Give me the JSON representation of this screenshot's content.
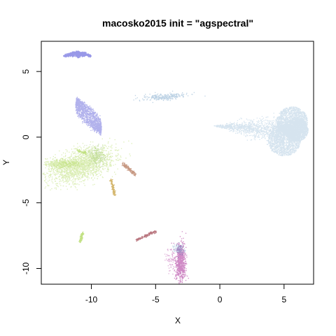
{
  "chart_data": {
    "type": "scatter",
    "title": "macosko2015 init = \"agspectral\"",
    "xlabel": "X",
    "ylabel": "Y",
    "xlim": [
      -13.9,
      7.3
    ],
    "ylim": [
      -11.2,
      7.3
    ],
    "xticks": [
      -10,
      -5,
      0,
      5
    ],
    "yticks": [
      -10,
      -5,
      0,
      5
    ],
    "grid": false,
    "legend": "none",
    "clusters": [
      {
        "shape": "heart",
        "color": "#4682b4",
        "alpha": 0.22,
        "n": 5500,
        "lobes": [
          [
            5.6,
            1.2,
            1.15
          ],
          [
            5.0,
            -0.2,
            1.2
          ],
          [
            5.9,
            0.6,
            0.9
          ]
        ],
        "tip": [
          -0.5,
          0.9
        ]
      },
      {
        "shape": "blob",
        "color": "#4682b4",
        "alpha": 0.35,
        "n": 260,
        "center": [
          -4.4,
          3.1
        ],
        "spread": [
          0.85,
          0.12
        ],
        "rotation": 0.08
      },
      {
        "shape": "arc",
        "color": "#1a1acd",
        "alpha": 0.45,
        "n": 700,
        "center": [
          -11.1,
          6.2
        ],
        "width": 2.0,
        "height": 0.35
      },
      {
        "shape": "leaf",
        "color": "#2020c8",
        "alpha": 0.35,
        "n": 1300,
        "start": [
          -11.2,
          2.9
        ],
        "end": [
          -9.3,
          0.4
        ],
        "width": 0.75
      },
      {
        "shape": "blob",
        "color": "#9acd32",
        "alpha": 0.35,
        "n": 1700,
        "center": [
          -10.8,
          -2.1
        ],
        "spread": [
          1.3,
          0.55
        ],
        "rotation": 0.35
      },
      {
        "shape": "blob",
        "color": "#9acd32",
        "alpha": 0.35,
        "n": 500,
        "center": [
          -12.4,
          -2.0
        ],
        "spread": [
          0.6,
          0.15
        ],
        "rotation": 0.0
      },
      {
        "shape": "blob",
        "color": "#8fbc5a",
        "alpha": 0.35,
        "n": 250,
        "center": [
          -9.6,
          -1.4
        ],
        "spread": [
          0.3,
          0.4
        ],
        "rotation": 0.6
      },
      {
        "shape": "line",
        "color": "#9acd32",
        "alpha": 0.5,
        "n": 60,
        "start": [
          -11.1,
          -1.0
        ],
        "end": [
          -10.4,
          -1.2
        ],
        "width": 0.05
      },
      {
        "shape": "line",
        "color": "#9acd32",
        "alpha": 0.6,
        "n": 90,
        "start": [
          -10.7,
          -7.3
        ],
        "end": [
          -10.9,
          -7.9
        ],
        "width": 0.05
      },
      {
        "shape": "line",
        "color": "#b8860b",
        "alpha": 0.6,
        "n": 120,
        "start": [
          -8.5,
          -3.2
        ],
        "end": [
          -8.2,
          -4.4
        ],
        "width": 0.05
      },
      {
        "shape": "line",
        "color": "#a0522d",
        "alpha": 0.6,
        "n": 140,
        "start": [
          -7.6,
          -2.0
        ],
        "end": [
          -6.6,
          -2.8
        ],
        "width": 0.06
      },
      {
        "shape": "line",
        "color": "#8b1a2a",
        "alpha": 0.6,
        "n": 140,
        "start": [
          -5.0,
          -7.1
        ],
        "end": [
          -6.5,
          -7.8
        ],
        "width": 0.05
      },
      {
        "shape": "blob",
        "color": "#a0148c",
        "alpha": 0.5,
        "n": 700,
        "center": [
          -3.1,
          -9.6
        ],
        "spread": [
          0.2,
          0.75
        ],
        "rotation": 0.0
      },
      {
        "shape": "blob",
        "color": "#4682b4",
        "alpha": 0.35,
        "n": 120,
        "center": [
          -3.2,
          -8.5
        ],
        "spread": [
          0.2,
          0.2
        ],
        "rotation": 0.0
      },
      {
        "shape": "blob",
        "color": "#a0148c",
        "alpha": 0.35,
        "n": 60,
        "center": [
          -3.8,
          -9.4
        ],
        "spread": [
          0.2,
          0.5
        ],
        "rotation": 0.0
      }
    ]
  }
}
